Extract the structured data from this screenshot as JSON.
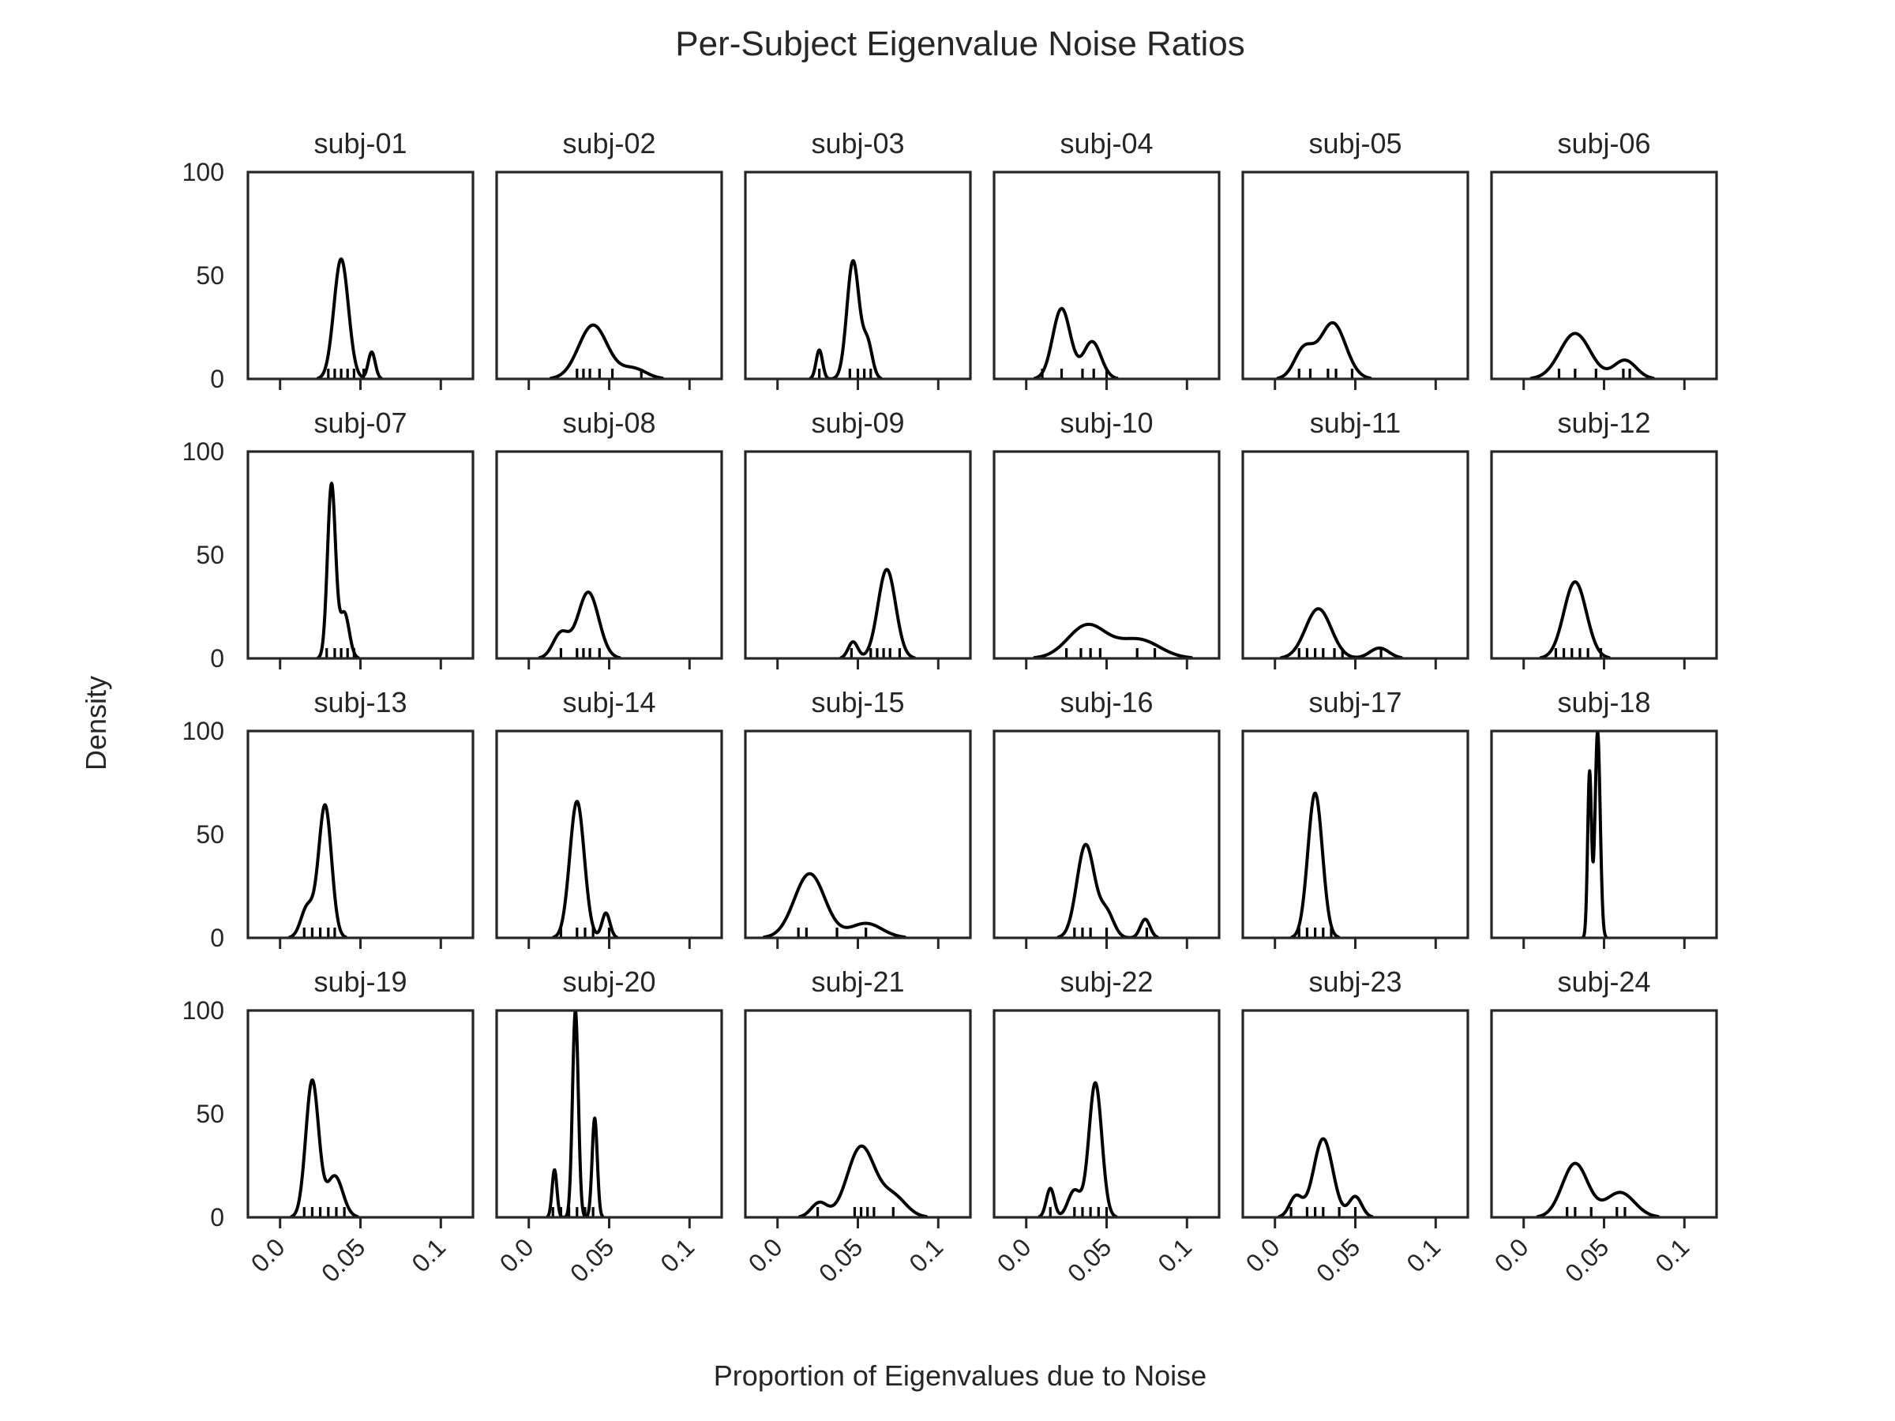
{
  "chart_data": {
    "type": "kde",
    "title": "Per-Subject Eigenvalue Noise Ratios",
    "xlabel": "Proportion of Eigenvalues due to Noise",
    "ylabel": "Density",
    "xlim": [
      -0.02,
      0.12
    ],
    "ylim": [
      0,
      100
    ],
    "x_ticks": [
      0.0,
      0.05,
      0.1
    ],
    "x_tick_labels": [
      "0.0",
      "0.05",
      "0.1"
    ],
    "y_ticks": [
      0,
      50,
      100
    ],
    "y_tick_labels": [
      "0",
      "50",
      "100"
    ],
    "grid": false,
    "layout": {
      "rows": 4,
      "cols": 6
    },
    "panels": [
      {
        "name": "subj-01",
        "rug": [
          0.03,
          0.034,
          0.038,
          0.042,
          0.046,
          0.052
        ],
        "peaks": [
          {
            "x": 0.038,
            "h": 58,
            "w": 0.0045
          },
          {
            "x": 0.057,
            "h": 13,
            "w": 0.0022
          }
        ]
      },
      {
        "name": "subj-02",
        "rug": [
          0.03,
          0.034,
          0.038,
          0.044,
          0.052,
          0.07
        ],
        "peaks": [
          {
            "x": 0.04,
            "h": 26,
            "w": 0.009
          },
          {
            "x": 0.065,
            "h": 5,
            "w": 0.008
          }
        ]
      },
      {
        "name": "subj-03",
        "rug": [
          0.026,
          0.045,
          0.05,
          0.054,
          0.058
        ],
        "peaks": [
          {
            "x": 0.026,
            "h": 14,
            "w": 0.002
          },
          {
            "x": 0.047,
            "h": 57,
            "w": 0.0038
          },
          {
            "x": 0.056,
            "h": 17,
            "w": 0.003
          }
        ]
      },
      {
        "name": "subj-04",
        "rug": [
          0.01,
          0.022,
          0.035,
          0.042,
          0.05
        ],
        "peaks": [
          {
            "x": 0.022,
            "h": 34,
            "w": 0.0055
          },
          {
            "x": 0.041,
            "h": 18,
            "w": 0.0055
          }
        ]
      },
      {
        "name": "subj-05",
        "rug": [
          0.015,
          0.022,
          0.033,
          0.038,
          0.048
        ],
        "peaks": [
          {
            "x": 0.018,
            "h": 14,
            "w": 0.006
          },
          {
            "x": 0.036,
            "h": 27,
            "w": 0.008
          }
        ]
      },
      {
        "name": "subj-06",
        "rug": [
          0.022,
          0.032,
          0.045,
          0.062,
          0.066
        ],
        "peaks": [
          {
            "x": 0.032,
            "h": 22,
            "w": 0.0095
          },
          {
            "x": 0.063,
            "h": 9,
            "w": 0.007
          }
        ]
      },
      {
        "name": "subj-07",
        "rug": [
          0.029,
          0.034,
          0.038,
          0.042,
          0.046
        ],
        "peaks": [
          {
            "x": 0.032,
            "h": 84,
            "w": 0.0025
          },
          {
            "x": 0.04,
            "h": 22,
            "w": 0.003
          }
        ]
      },
      {
        "name": "subj-08",
        "rug": [
          0.02,
          0.03,
          0.034,
          0.038,
          0.044
        ],
        "peaks": [
          {
            "x": 0.02,
            "h": 12,
            "w": 0.005
          },
          {
            "x": 0.037,
            "h": 32,
            "w": 0.0065
          }
        ]
      },
      {
        "name": "subj-09",
        "rug": [
          0.046,
          0.058,
          0.062,
          0.066,
          0.07,
          0.076
        ],
        "peaks": [
          {
            "x": 0.047,
            "h": 8,
            "w": 0.003
          },
          {
            "x": 0.068,
            "h": 43,
            "w": 0.0055
          }
        ]
      },
      {
        "name": "subj-10",
        "rug": [
          0.025,
          0.034,
          0.04,
          0.046,
          0.069,
          0.08
        ],
        "peaks": [
          {
            "x": 0.038,
            "h": 16,
            "w": 0.012
          },
          {
            "x": 0.07,
            "h": 9,
            "w": 0.013
          }
        ]
      },
      {
        "name": "subj-11",
        "rug": [
          0.015,
          0.02,
          0.025,
          0.03,
          0.037,
          0.042,
          0.066
        ],
        "peaks": [
          {
            "x": 0.027,
            "h": 24,
            "w": 0.008
          },
          {
            "x": 0.065,
            "h": 5,
            "w": 0.006
          }
        ]
      },
      {
        "name": "subj-12",
        "rug": [
          0.02,
          0.025,
          0.03,
          0.035,
          0.04,
          0.048
        ],
        "peaks": [
          {
            "x": 0.032,
            "h": 37,
            "w": 0.007
          }
        ]
      },
      {
        "name": "subj-13",
        "rug": [
          0.015,
          0.02,
          0.025,
          0.03,
          0.034
        ],
        "peaks": [
          {
            "x": 0.017,
            "h": 15,
            "w": 0.004
          },
          {
            "x": 0.028,
            "h": 64,
            "w": 0.004
          }
        ]
      },
      {
        "name": "subj-14",
        "rug": [
          0.02,
          0.03,
          0.035,
          0.04,
          0.05
        ],
        "peaks": [
          {
            "x": 0.03,
            "h": 66,
            "w": 0.0045
          },
          {
            "x": 0.048,
            "h": 12,
            "w": 0.0025
          }
        ]
      },
      {
        "name": "subj-15",
        "rug": [
          0.013,
          0.018,
          0.037,
          0.055
        ],
        "peaks": [
          {
            "x": 0.02,
            "h": 31,
            "w": 0.0095
          },
          {
            "x": 0.055,
            "h": 7,
            "w": 0.01
          }
        ]
      },
      {
        "name": "subj-16",
        "rug": [
          0.03,
          0.035,
          0.04,
          0.05,
          0.075
        ],
        "peaks": [
          {
            "x": 0.037,
            "h": 45,
            "w": 0.0055
          },
          {
            "x": 0.05,
            "h": 12,
            "w": 0.0045
          },
          {
            "x": 0.074,
            "h": 9,
            "w": 0.003
          }
        ]
      },
      {
        "name": "subj-17",
        "rug": [
          0.015,
          0.02,
          0.025,
          0.03,
          0.035
        ],
        "peaks": [
          {
            "x": 0.025,
            "h": 70,
            "w": 0.0045
          }
        ]
      },
      {
        "name": "subj-18",
        "rug": [],
        "peaks": [
          {
            "x": 0.041,
            "h": 80,
            "w": 0.0012
          },
          {
            "x": 0.046,
            "h": 100,
            "w": 0.0016
          }
        ]
      },
      {
        "name": "subj-19",
        "rug": [
          0.015,
          0.02,
          0.025,
          0.03,
          0.035,
          0.04
        ],
        "peaks": [
          {
            "x": 0.02,
            "h": 66,
            "w": 0.004
          },
          {
            "x": 0.034,
            "h": 20,
            "w": 0.005
          }
        ]
      },
      {
        "name": "subj-20",
        "rug": [
          0.015,
          0.02,
          0.025,
          0.03,
          0.035,
          0.04
        ],
        "peaks": [
          {
            "x": 0.016,
            "h": 23,
            "w": 0.0015
          },
          {
            "x": 0.029,
            "h": 100,
            "w": 0.0018
          },
          {
            "x": 0.041,
            "h": 48,
            "w": 0.0016
          }
        ]
      },
      {
        "name": "subj-21",
        "rug": [
          0.025,
          0.048,
          0.052,
          0.056,
          0.06,
          0.072
        ],
        "peaks": [
          {
            "x": 0.026,
            "h": 7,
            "w": 0.005
          },
          {
            "x": 0.052,
            "h": 34,
            "w": 0.0085
          },
          {
            "x": 0.072,
            "h": 10,
            "w": 0.008
          }
        ]
      },
      {
        "name": "subj-22",
        "rug": [
          0.015,
          0.03,
          0.035,
          0.04,
          0.045,
          0.05
        ],
        "peaks": [
          {
            "x": 0.015,
            "h": 14,
            "w": 0.0025
          },
          {
            "x": 0.03,
            "h": 13,
            "w": 0.004
          },
          {
            "x": 0.043,
            "h": 65,
            "w": 0.004
          }
        ]
      },
      {
        "name": "subj-23",
        "rug": [
          0.01,
          0.02,
          0.025,
          0.03,
          0.04,
          0.05
        ],
        "peaks": [
          {
            "x": 0.013,
            "h": 10,
            "w": 0.004
          },
          {
            "x": 0.03,
            "h": 38,
            "w": 0.006
          },
          {
            "x": 0.05,
            "h": 10,
            "w": 0.004
          }
        ]
      },
      {
        "name": "subj-24",
        "rug": [
          0.027,
          0.032,
          0.042,
          0.058,
          0.063
        ],
        "peaks": [
          {
            "x": 0.032,
            "h": 26,
            "w": 0.008
          },
          {
            "x": 0.06,
            "h": 12,
            "w": 0.009
          }
        ]
      }
    ]
  }
}
